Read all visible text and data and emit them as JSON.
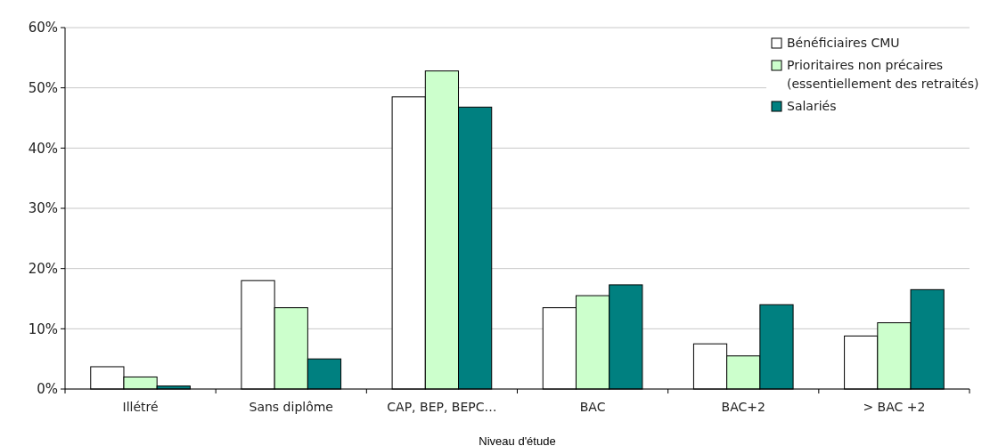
{
  "chart_data": {
    "type": "bar",
    "xlabel": "Niveau d'étude",
    "categories": [
      "Illétré",
      "Sans diplôme",
      "CAP, BEP, BEPC…",
      "BAC",
      "BAC+2",
      "> BAC +2"
    ],
    "series": [
      {
        "name": "Bénéficiaires CMU",
        "color": "#ffffff",
        "values": [
          3.7,
          18,
          48.5,
          13.5,
          7.5,
          8.8
        ]
      },
      {
        "name": "Prioritaires non précaires\n(essentiellement des retraités)",
        "color": "#ccffcc",
        "values": [
          2,
          13.5,
          52.8,
          15.5,
          5.5,
          11
        ]
      },
      {
        "name": "Salariés",
        "color": "#008080",
        "values": [
          0.5,
          5,
          46.8,
          17.3,
          14,
          16.5
        ]
      }
    ],
    "ylim": [
      0,
      60
    ],
    "yticks": [
      {
        "value": 0,
        "label": "0%"
      },
      {
        "value": 10,
        "label": "10%"
      },
      {
        "value": 20,
        "label": "20%"
      },
      {
        "value": 30,
        "label": "30%"
      },
      {
        "value": 40,
        "label": "40%"
      },
      {
        "value": 50,
        "label": "50%"
      },
      {
        "value": 60,
        "label": "60%"
      }
    ],
    "grid": "y",
    "legend": "top right"
  }
}
